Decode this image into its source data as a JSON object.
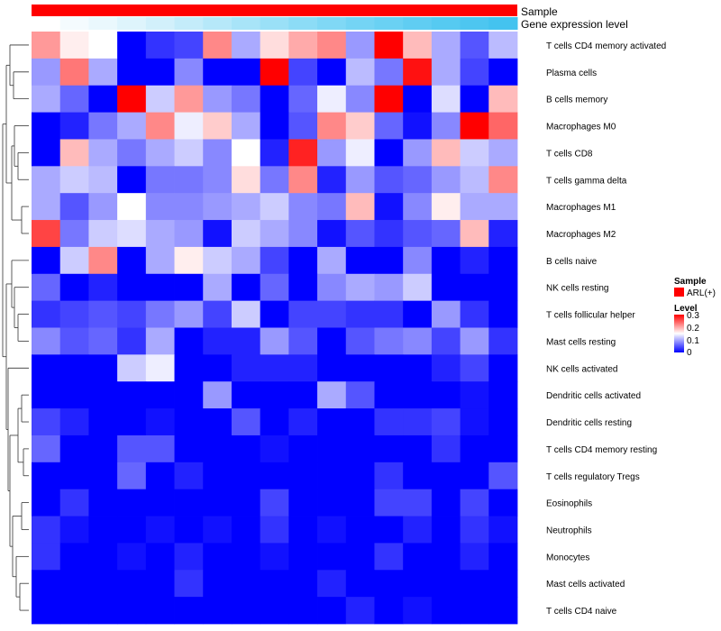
{
  "chart_data": {
    "type": "heatmap",
    "title": "",
    "annotations": [
      {
        "name": "Sample",
        "color": "#ff0000"
      },
      {
        "name": "Gene expression level",
        "gradient": [
          "#ffffff",
          "#6ad3f0",
          "#3cc2ef"
        ]
      }
    ],
    "legend": {
      "sample_title": "Sample",
      "sample_entries": [
        {
          "label": "ARL(+)",
          "color": "#ff0000"
        }
      ],
      "level_title": "Level",
      "level_ticks": [
        "0.3",
        "0.2",
        "0.1",
        "0"
      ],
      "colors": {
        "low": "#0000ff",
        "mid": "#ffffff",
        "high": "#ff0000"
      }
    },
    "value_range": [
      0,
      0.3
    ],
    "rows": [
      "T cells CD4 memory activated",
      "Plasma cells",
      "B cells memory",
      "Macrophages M0",
      "T cells CD8",
      "T cells gamma delta",
      "Macrophages M1",
      "Macrophages M2",
      "B cells naive",
      "NK cells resting",
      "T cells follicular helper",
      "Mast cells resting",
      "NK cells activated",
      "Dendritic cells activated",
      "Dendritic cells resting",
      "T cells CD4 memory resting",
      "T cells regulatory  Tregs",
      "Eosinophils",
      "Neutrophils",
      "Monocytes",
      "Mast cells activated",
      "T cells CD4 naive"
    ],
    "values": [
      [
        0.21,
        0.16,
        0.15,
        0.0,
        0.03,
        0.04,
        0.22,
        0.1,
        0.17,
        0.2,
        0.22,
        0.09,
        0.3,
        0.19,
        0.1,
        0.05,
        0.11
      ],
      [
        0.09,
        0.23,
        0.1,
        0.0,
        0.0,
        0.08,
        0.0,
        0.0,
        0.3,
        0.04,
        0.0,
        0.11,
        0.07,
        0.29,
        0.1,
        0.04,
        0.0
      ],
      [
        0.1,
        0.06,
        0.0,
        0.3,
        0.12,
        0.21,
        0.09,
        0.07,
        0.0,
        0.06,
        0.14,
        0.08,
        0.3,
        0.0,
        0.13,
        0.0,
        0.19
      ],
      [
        0.0,
        0.02,
        0.07,
        0.1,
        0.22,
        0.14,
        0.18,
        0.1,
        0.0,
        0.05,
        0.22,
        0.18,
        0.06,
        0.01,
        0.08,
        0.3,
        0.24
      ],
      [
        0.0,
        0.19,
        0.1,
        0.07,
        0.1,
        0.12,
        0.08,
        0.15,
        0.02,
        0.28,
        0.09,
        0.14,
        0.0,
        0.09,
        0.19,
        0.12,
        0.1
      ],
      [
        0.1,
        0.12,
        0.11,
        0.0,
        0.07,
        0.07,
        0.08,
        0.17,
        0.07,
        0.22,
        0.02,
        0.09,
        0.05,
        0.06,
        0.09,
        0.11,
        0.22
      ],
      [
        0.1,
        0.05,
        0.09,
        0.15,
        0.08,
        0.08,
        0.09,
        0.1,
        0.12,
        0.08,
        0.07,
        0.19,
        0.01,
        0.08,
        0.16,
        0.1,
        0.1
      ],
      [
        0.26,
        0.07,
        0.12,
        0.13,
        0.1,
        0.09,
        0.01,
        0.12,
        0.1,
        0.08,
        0.01,
        0.05,
        0.03,
        0.05,
        0.06,
        0.19,
        0.02
      ],
      [
        0.0,
        0.12,
        0.22,
        0.0,
        0.1,
        0.16,
        0.12,
        0.1,
        0.04,
        0.0,
        0.1,
        0.0,
        0.0,
        0.08,
        0.0,
        0.02,
        0.0
      ],
      [
        0.06,
        0.0,
        0.02,
        0.0,
        0.0,
        0.0,
        0.1,
        0.0,
        0.06,
        0.0,
        0.08,
        0.1,
        0.09,
        0.12,
        0.0,
        0.0,
        0.0
      ],
      [
        0.03,
        0.04,
        0.05,
        0.04,
        0.07,
        0.09,
        0.04,
        0.12,
        0.0,
        0.04,
        0.04,
        0.03,
        0.03,
        0.0,
        0.09,
        0.03,
        0.0
      ],
      [
        0.08,
        0.05,
        0.06,
        0.03,
        0.1,
        0.0,
        0.02,
        0.02,
        0.09,
        0.05,
        0.0,
        0.05,
        0.07,
        0.08,
        0.04,
        0.09,
        0.03
      ],
      [
        0.0,
        0.0,
        0.0,
        0.12,
        0.14,
        0.0,
        0.0,
        0.02,
        0.02,
        0.02,
        0.0,
        0.0,
        0.0,
        0.0,
        0.02,
        0.04,
        0.0
      ],
      [
        0.0,
        0.0,
        0.0,
        0.0,
        0.0,
        0.0,
        0.09,
        0.0,
        0.0,
        0.0,
        0.1,
        0.05,
        0.0,
        0.0,
        0.0,
        0.01,
        0.0
      ],
      [
        0.04,
        0.02,
        0.0,
        0.0,
        0.01,
        0.0,
        0.0,
        0.05,
        0.0,
        0.02,
        0.0,
        0.0,
        0.03,
        0.03,
        0.04,
        0.01,
        0.0
      ],
      [
        0.06,
        0.0,
        0.0,
        0.05,
        0.05,
        0.0,
        0.0,
        0.0,
        0.01,
        0.0,
        0.0,
        0.0,
        0.0,
        0.0,
        0.03,
        0.0,
        0.0
      ],
      [
        0.0,
        0.0,
        0.0,
        0.06,
        0.0,
        0.02,
        0.0,
        0.0,
        0.0,
        0.0,
        0.0,
        0.0,
        0.03,
        0.0,
        0.0,
        0.0,
        0.05
      ],
      [
        0.0,
        0.03,
        0.0,
        0.0,
        0.0,
        0.0,
        0.0,
        0.0,
        0.04,
        0.0,
        0.0,
        0.0,
        0.04,
        0.04,
        0.0,
        0.04,
        0.0
      ],
      [
        0.03,
        0.01,
        0.0,
        0.0,
        0.01,
        0.0,
        0.01,
        0.0,
        0.03,
        0.0,
        0.01,
        0.0,
        0.0,
        0.02,
        0.0,
        0.03,
        0.01
      ],
      [
        0.03,
        0.0,
        0.0,
        0.01,
        0.0,
        0.02,
        0.0,
        0.0,
        0.01,
        0.0,
        0.0,
        0.0,
        0.03,
        0.0,
        0.0,
        0.02,
        0.0
      ],
      [
        0.0,
        0.0,
        0.0,
        0.0,
        0.0,
        0.03,
        0.0,
        0.0,
        0.0,
        0.0,
        0.02,
        0.0,
        0.0,
        0.0,
        0.0,
        0.0,
        0.0
      ],
      [
        0.0,
        0.0,
        0.0,
        0.0,
        0.0,
        0.0,
        0.0,
        0.0,
        0.0,
        0.0,
        0.0,
        0.02,
        0.0,
        0.01,
        0.0,
        0.0,
        0.0
      ]
    ],
    "dendrogram_order": "hierarchical clustering of rows (tree drawn on left)"
  }
}
